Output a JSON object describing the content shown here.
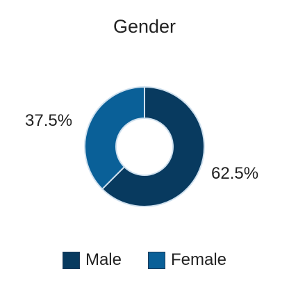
{
  "chart_data": {
    "type": "pie",
    "title": "Gender",
    "donut": true,
    "categories": [
      "Male",
      "Female"
    ],
    "values": [
      62.5,
      37.5
    ],
    "labels": [
      "62.5%",
      "37.5%"
    ],
    "colors": [
      "#083a5f",
      "#0a6098"
    ],
    "legend": {
      "placement": "bottom",
      "entries": [
        "Male",
        "Female"
      ]
    }
  }
}
